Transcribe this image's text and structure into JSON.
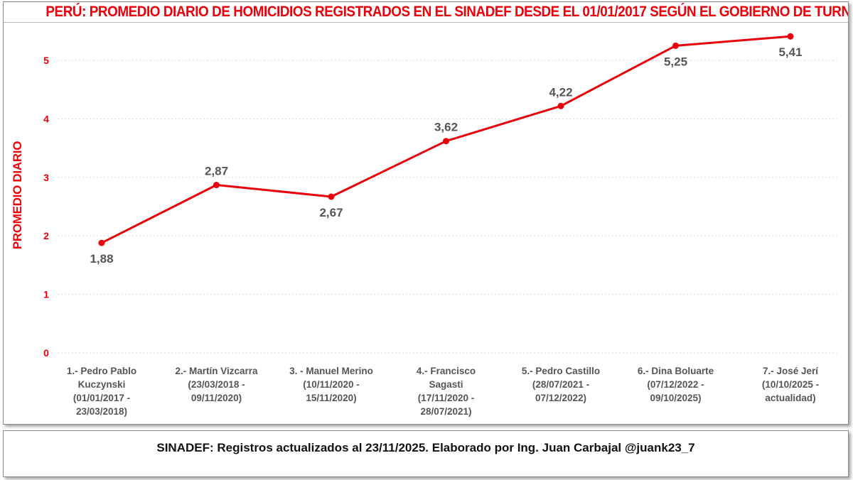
{
  "chart_data": {
    "type": "line",
    "title": "PERÚ: PROMEDIO DIARIO DE HOMICIDIOS REGISTRADOS EN EL SINADEF DESDE EL 01/01/2017 SEGÚN EL GOBIERNO DE TURNO",
    "xlabel": "",
    "ylabel": "PROMEDIO DIARIO",
    "ylim": [
      0,
      5.6
    ],
    "yticks": [
      "0",
      "1",
      "2",
      "3",
      "4",
      "5"
    ],
    "grid": true,
    "categories": [
      [
        "1.- Pedro Pablo",
        "Kuczynski",
        "(01/01/2017 -",
        "23/03/2018)"
      ],
      [
        "2.- Martín Vizcarra",
        "(23/03/2018 -",
        "09/11/2020)"
      ],
      [
        "3. - Manuel Merino",
        "(10/11/2020 -",
        "15/11/2020)"
      ],
      [
        "4.- Francisco",
        "Sagasti",
        "(17/11/2020 -",
        "28/07/2021)"
      ],
      [
        "5.- Pedro Castillo",
        "(28/07/2021 -",
        "07/12/2022)"
      ],
      [
        "6.- Dina Boluarte",
        "(07/12/2022 -",
        "09/10/2025)"
      ],
      [
        "7.- José Jerí",
        "(10/10/2025 -",
        "actualidad)"
      ]
    ],
    "values": [
      1.88,
      2.87,
      2.67,
      3.62,
      4.22,
      5.25,
      5.41
    ],
    "data_labels": [
      "1,88",
      "2,87",
      "2,67",
      "3,62",
      "4,22",
      "5,25",
      "5,41"
    ],
    "label_positions": [
      "below",
      "above",
      "below",
      "above",
      "above",
      "below",
      "below"
    ],
    "colors": {
      "line": "#e8000b",
      "title": "#e8000b",
      "axis_text": "#e8000b",
      "label_text": "#555555"
    }
  },
  "footer": {
    "text": "SINADEF: Registros actualizados al 23/11/2025. Elaborado por Ing. Juan Carbajal @juank23_7"
  }
}
